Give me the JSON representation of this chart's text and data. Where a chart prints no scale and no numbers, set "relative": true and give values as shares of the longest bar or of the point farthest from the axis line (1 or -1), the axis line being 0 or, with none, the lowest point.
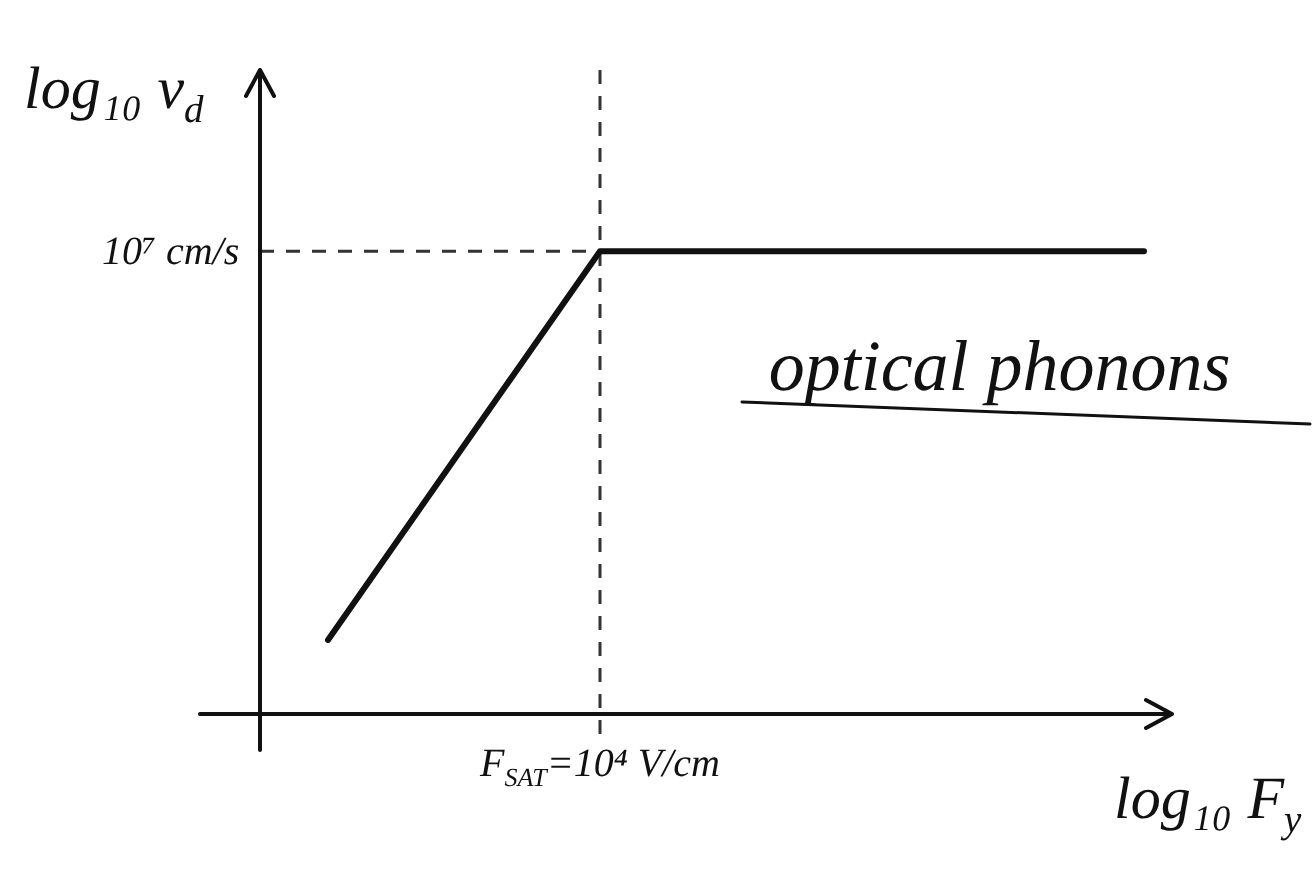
{
  "chart_data": {
    "type": "line",
    "relative": true,
    "categories": [
      null,
      null,
      null,
      null
    ],
    "series": [
      {
        "color": "#111111",
        "values": [
          0.16,
          1,
          1,
          1
        ]
      }
    ],
    "xlabel": "log₁₀ F$_{y}$",
    "ylabel": "log₁₀ v$_{d}$",
    "ref_lines": [
      {
        "axis": "y",
        "value": 1,
        "label": "10⁷ cm/s",
        "color": "#333333",
        "line_style": "dashed"
      }
    ],
    "annotations": [
      "optical phonons",
      "F$_{SAT}$=10⁴ V/cm"
    ],
    "marker": "none",
    "line_style": "solid",
    "grid": false,
    "legend": false
  }
}
